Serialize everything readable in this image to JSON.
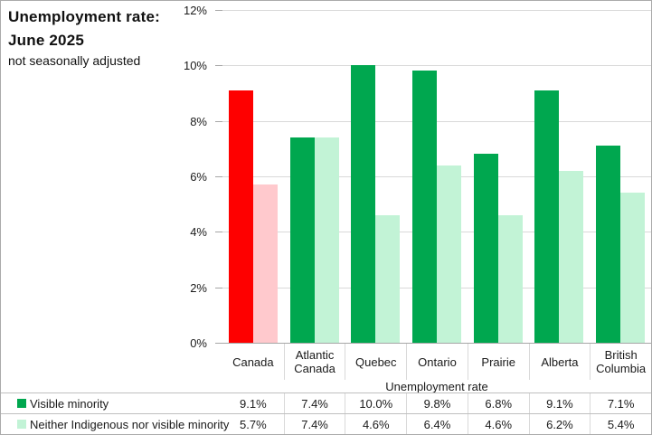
{
  "header": {
    "title_line1": "Unemployment rate:",
    "title_line2": "June 2025",
    "subtitle": "not seasonally adjusted"
  },
  "chart_data": {
    "type": "bar",
    "title": "Unemployment rate: June 2025",
    "subtitle": "not seasonally adjusted",
    "categories": [
      "Canada",
      "Atlantic Canada",
      "Quebec",
      "Ontario",
      "Prairie",
      "Alberta",
      "British Columbia"
    ],
    "series": [
      {
        "name": "Visible minority",
        "values": [
          9.1,
          7.4,
          10.0,
          9.8,
          6.8,
          9.1,
          7.1
        ],
        "color": "#00a74f",
        "canada_color": "#fe0000"
      },
      {
        "name": "Neither Indigenous nor visible minority",
        "values": [
          5.7,
          7.4,
          4.6,
          6.4,
          4.6,
          6.2,
          5.4
        ],
        "color": "#c2f3d6",
        "canada_color": "#ffc9cd"
      }
    ],
    "xlabel": "Unemployment rate",
    "ylabel": "",
    "ylim": [
      0,
      12
    ],
    "ytick_labels": [
      "0%",
      "2%",
      "4%",
      "6%",
      "8%",
      "10%",
      "12%"
    ],
    "grid": true,
    "legend_position": "bottom-left table",
    "highlighted_category": "Canada"
  },
  "colors": {
    "gridline": "#d9d9d9",
    "axis": "#a6a6a6",
    "table_line": "#bfbfbf",
    "column_divider": "#d9d9d9",
    "frame_border": "#ababab",
    "text": "#1a1a1a"
  }
}
